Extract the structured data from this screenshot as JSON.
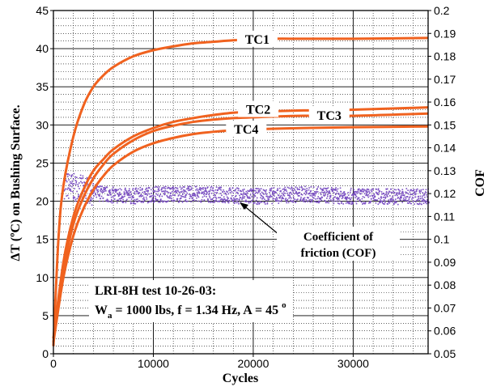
{
  "chart_data": {
    "type": "line",
    "xlabel": "Cycles",
    "ylabel": "ΔT (ºC) on Bushing Surface.",
    "y2label": "COF",
    "xlim": [
      0,
      37500
    ],
    "ylim": [
      0,
      45
    ],
    "y2lim": [
      0.05,
      0.2
    ],
    "x_ticks": [
      "0",
      "10000",
      "20000",
      "30000"
    ],
    "y_ticks": [
      "0",
      "5",
      "10",
      "15",
      "20",
      "25",
      "30",
      "35",
      "40",
      "45"
    ],
    "y2_ticks": [
      "0.05",
      "0.06",
      "0.07",
      "0.08",
      "0.09",
      "0.1",
      "0.11",
      "0.12",
      "0.13",
      "0.14",
      "0.15",
      "0.16",
      "0.17",
      "0.18",
      "0.19",
      "0.2"
    ],
    "grid": true,
    "series": [
      {
        "name": "TC1",
        "axis": "left",
        "color": "#f0621f",
        "x": [
          0,
          500,
          1000,
          2000,
          3000,
          4000,
          5000,
          6000,
          8000,
          10000,
          12000,
          14000,
          16000,
          18000,
          20000,
          22000,
          25000,
          30000,
          37500
        ],
        "y": [
          1,
          15,
          22,
          28.5,
          32.5,
          35,
          36.5,
          37.6,
          39,
          39.8,
          40.3,
          40.7,
          40.9,
          41.1,
          41.2,
          41.3,
          41.3,
          41.3,
          41.4
        ]
      },
      {
        "name": "TC2",
        "axis": "left",
        "color": "#f0621f",
        "x": [
          0,
          1000,
          2000,
          3000,
          4000,
          5000,
          6000,
          8000,
          10000,
          12000,
          14000,
          16000,
          18000,
          20000,
          22000,
          25000,
          30000,
          37500
        ],
        "y": [
          2,
          12,
          18,
          21.5,
          24,
          25.5,
          26.8,
          28.5,
          29.6,
          30.4,
          30.9,
          31.3,
          31.6,
          31.7,
          31.8,
          31.9,
          32,
          32.3
        ]
      },
      {
        "name": "TC3",
        "axis": "left",
        "color": "#f0621f",
        "x": [
          0,
          1000,
          2000,
          3000,
          4000,
          5000,
          6000,
          8000,
          10000,
          12000,
          14000,
          16000,
          18000,
          20000,
          22000,
          25000,
          30000,
          37500
        ],
        "y": [
          2,
          11,
          17,
          20.5,
          23,
          24.8,
          26.2,
          28,
          29.2,
          29.9,
          30.4,
          30.7,
          30.9,
          31,
          31.1,
          31.2,
          31.2,
          31.5
        ]
      },
      {
        "name": "TC4",
        "axis": "left",
        "color": "#f0621f",
        "x": [
          0,
          1000,
          2000,
          3000,
          4000,
          5000,
          6000,
          8000,
          10000,
          12000,
          14000,
          16000,
          18000,
          20000,
          22000,
          25000,
          30000,
          37500
        ],
        "y": [
          1.5,
          10,
          15.5,
          19,
          21.5,
          23.3,
          24.7,
          26.5,
          27.6,
          28.3,
          28.8,
          29.1,
          29.3,
          29.4,
          29.5,
          29.6,
          29.7,
          29.8
        ]
      },
      {
        "name": "Coefficient of friction (COF)",
        "axis": "right",
        "color": "#7a4fc2",
        "x": [
          1000,
          3000,
          5000,
          7500,
          10000,
          15000,
          20000,
          25000,
          30000,
          37500
        ],
        "y": [
          0.124,
          0.122,
          0.12,
          0.119,
          0.12,
          0.12,
          0.119,
          0.12,
          0.119,
          0.119
        ]
      }
    ],
    "series_labels": [
      "TC1",
      "TC2",
      "TC3",
      "TC4"
    ],
    "annotations": {
      "cof_line1": "Coefficient of",
      "cof_line2": "friction (COF)",
      "test_line1": "LRI-8H test 10-26-03:",
      "test_line2_a": "W",
      "test_line2_sub": "a",
      "test_line2_b": " = 1000 lbs, f = 1.34 Hz, A = 45 ",
      "test_line2_sup": "o"
    }
  }
}
